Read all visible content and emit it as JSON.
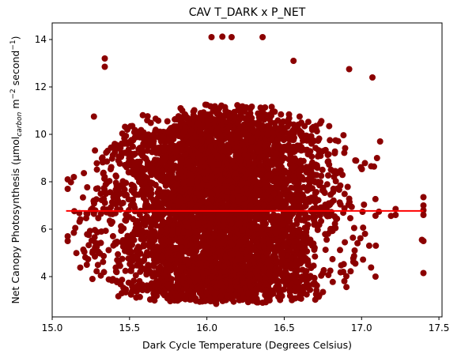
{
  "chart_data": {
    "type": "scatter",
    "title": "CAV T_DARK x P_NET",
    "xlabel": "Dark Cycle Temperature (Degrees Celsius)",
    "ylabel_main": "Net Canopy Photosynthesis (μmol",
    "ylabel_sub": "carbon",
    "ylabel_unit_m": " m",
    "ylabel_exp1": "−2",
    "ylabel_unit_s": " second",
    "ylabel_exp2": "−1",
    "ylabel_close": ")",
    "xlim": [
      15.0,
      17.52
    ],
    "ylim": [
      2.3,
      14.7
    ],
    "xticks": [
      15.0,
      15.5,
      16.0,
      16.5,
      17.0,
      17.5
    ],
    "xtick_labels": [
      "15.0",
      "15.5",
      "16.0",
      "16.5",
      "17.0",
      "17.5"
    ],
    "yticks": [
      4,
      6,
      8,
      10,
      12,
      14
    ],
    "ytick_labels": [
      "4",
      "6",
      "8",
      "10",
      "12",
      "14"
    ],
    "grid": false,
    "legend": "none",
    "colors": {
      "points": "#8b0000",
      "fit_line": "#ff0000"
    },
    "fit_line": {
      "x": [
        15.09,
        17.4
      ],
      "y": [
        6.77,
        6.77
      ]
    },
    "scatter": {
      "x_range": [
        15.08,
        17.4
      ],
      "y_center": 6.8,
      "note_points": "dense cloud of points",
      "outliers": [
        {
          "x": 16.03,
          "y": 14.1
        },
        {
          "x": 16.1,
          "y": 14.12
        },
        {
          "x": 16.16,
          "y": 14.1
        },
        {
          "x": 16.36,
          "y": 14.1
        },
        {
          "x": 15.34,
          "y": 13.2
        },
        {
          "x": 15.34,
          "y": 12.85
        },
        {
          "x": 16.56,
          "y": 13.1
        },
        {
          "x": 16.92,
          "y": 12.75
        },
        {
          "x": 17.07,
          "y": 12.4
        },
        {
          "x": 15.1,
          "y": 8.1
        },
        {
          "x": 15.1,
          "y": 7.7
        },
        {
          "x": 15.1,
          "y": 5.7
        },
        {
          "x": 15.1,
          "y": 5.5
        },
        {
          "x": 15.14,
          "y": 5.85
        },
        {
          "x": 15.14,
          "y": 8.2
        },
        {
          "x": 15.27,
          "y": 10.75
        },
        {
          "x": 15.26,
          "y": 3.9
        },
        {
          "x": 15.45,
          "y": 3.3
        },
        {
          "x": 16.06,
          "y": 2.85
        },
        {
          "x": 16.36,
          "y": 2.9
        },
        {
          "x": 16.75,
          "y": 3.35
        },
        {
          "x": 17.4,
          "y": 7.35
        },
        {
          "x": 17.4,
          "y": 7.0
        },
        {
          "x": 17.4,
          "y": 6.8
        },
        {
          "x": 17.4,
          "y": 6.6
        },
        {
          "x": 17.39,
          "y": 5.55
        },
        {
          "x": 17.4,
          "y": 5.5
        },
        {
          "x": 17.4,
          "y": 4.15
        },
        {
          "x": 17.09,
          "y": 4.0
        },
        {
          "x": 17.22,
          "y": 6.85
        },
        {
          "x": 17.22,
          "y": 6.6
        },
        {
          "x": 17.12,
          "y": 9.7
        },
        {
          "x": 17.1,
          "y": 9.0
        }
      ]
    }
  }
}
